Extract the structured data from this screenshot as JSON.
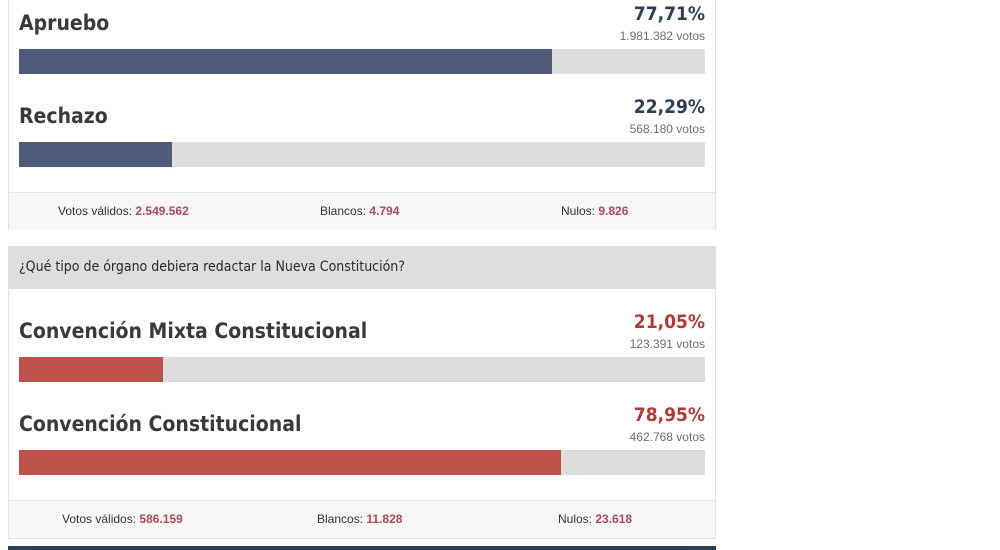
{
  "chart_data": [
    {
      "type": "bar",
      "categories": [
        "Apruebo",
        "Rechazo"
      ],
      "values": [
        77.71,
        22.29
      ],
      "pct_labels": [
        "77,71%",
        "22,29%"
      ],
      "votes": [
        "1.981.382 votos",
        "568.180 votos"
      ],
      "xlim": [
        0,
        100
      ],
      "bar_color": "#4f5b78",
      "pct_color": "#2e3e55",
      "stats": {
        "validos_label": "Votos válidos:",
        "validos_value": "2.549.562",
        "blancos_label": "Blancos:",
        "blancos_value": "4.794",
        "nulos_label": "Nulos:",
        "nulos_value": "9.826"
      }
    },
    {
      "type": "bar",
      "title": "¿Qué tipo de órgano debiera redactar la Nueva Constitución?",
      "categories": [
        "Convención Mixta Constitucional",
        "Convención Constitucional"
      ],
      "values": [
        21.05,
        78.95
      ],
      "pct_labels": [
        "21,05%",
        "78,95%"
      ],
      "votes": [
        "123.391 votos",
        "462.768 votos"
      ],
      "xlim": [
        0,
        100
      ],
      "bar_color": "#c0504a",
      "pct_color": "#b23a33",
      "stats": {
        "validos_label": "Votos válidos:",
        "validos_value": "586.159",
        "blancos_label": "Blancos:",
        "blancos_value": "11.828",
        "nulos_label": "Nulos:",
        "nulos_value": "23.618"
      }
    }
  ]
}
